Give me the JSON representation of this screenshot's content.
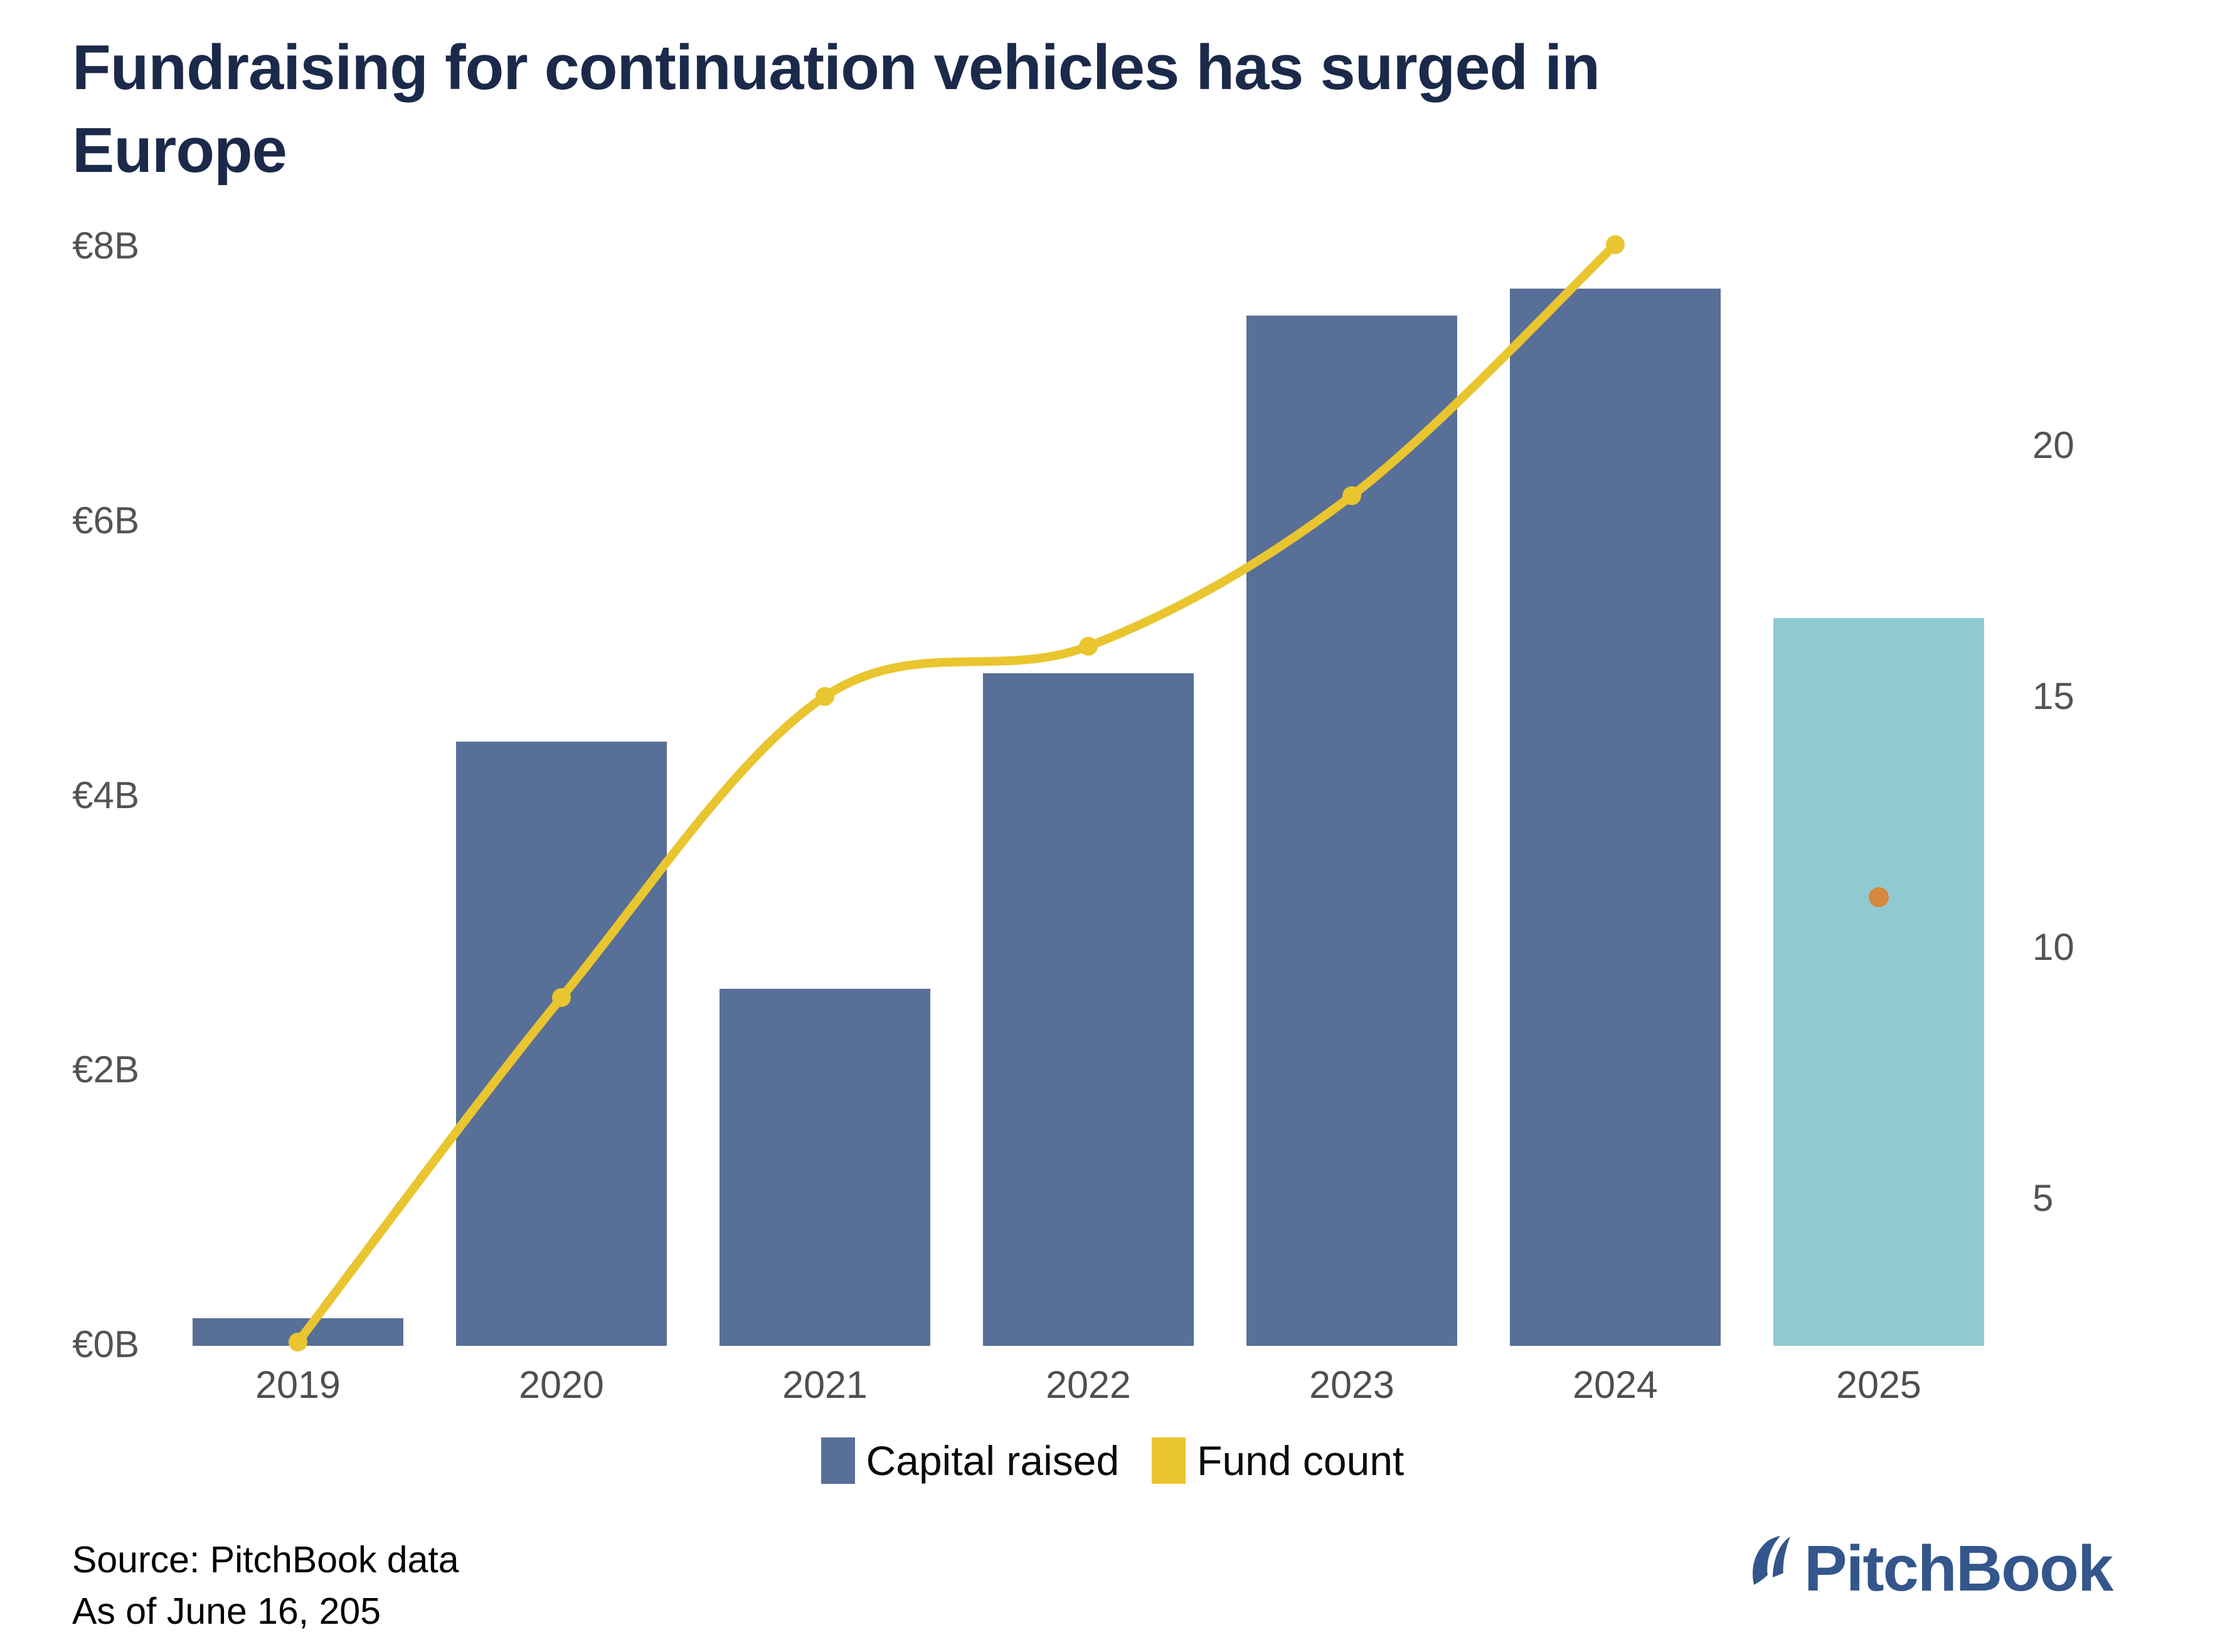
{
  "title": {
    "lines": [
      "Fundraising for continuation vehicles has surged in",
      "Europe"
    ]
  },
  "chart_data": {
    "type": "bar+line combo",
    "categories": [
      "2019",
      "2020",
      "2021",
      "2022",
      "2023",
      "2024",
      "2025"
    ],
    "series": [
      {
        "name": "Capital raised",
        "type": "bar",
        "axis": "left",
        "unit": "EUR billions",
        "values": [
          0.2,
          4.4,
          2.6,
          4.9,
          7.5,
          7.7,
          5.3
        ]
      },
      {
        "name": "Fund count",
        "type": "line",
        "axis": "right",
        "values": [
          2,
          9,
          15,
          16,
          19,
          24,
          11
        ]
      }
    ],
    "left_axis": {
      "tick_labels": [
        "€8B",
        "€6B",
        "€4B",
        "€2B",
        "€0B"
      ],
      "tick_values": [
        8,
        6,
        4,
        2,
        0
      ],
      "range": [
        0,
        8
      ]
    },
    "right_axis": {
      "tick_labels": [
        "20",
        "15",
        "10",
        "5"
      ],
      "tick_values": [
        20,
        15,
        10,
        5
      ]
    },
    "grid": false,
    "legend_position": "bottom-center",
    "notes": {
      "estimated_year": "2025",
      "estimated_bar_style": "teal bar (year-to-date)",
      "estimated_point_style": "orange dot instead of line point"
    }
  },
  "legend": {
    "items": [
      {
        "label": "Capital raised",
        "color": "#586f98"
      },
      {
        "label": "Fund count",
        "color": "#e9c52f"
      }
    ]
  },
  "source": {
    "line1": "Source: PitchBook data",
    "line2": "As of June 16, 205"
  },
  "logo": {
    "text": "PitchBook"
  },
  "colors": {
    "bar": "#586f98",
    "bar_estimate": "#8fcad1",
    "line": "#e9c52f",
    "estimate_point": "#d6883f",
    "title": "#1b2a4a",
    "axis_text": "#515457",
    "logo_blue": "#33568c"
  }
}
